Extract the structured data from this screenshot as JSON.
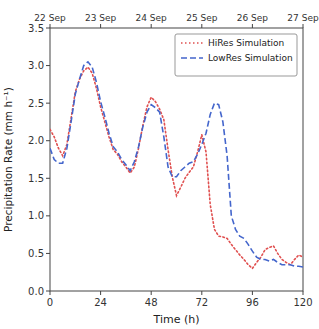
{
  "chart_data": {
    "type": "line",
    "x_label": "Time (h)",
    "y_label": "Precipitation Rate (mm h⁻¹)",
    "x": [
      0,
      2,
      4,
      6,
      8,
      10,
      12,
      14,
      16,
      18,
      20,
      22,
      24,
      26,
      28,
      30,
      32,
      34,
      36,
      38,
      40,
      42,
      44,
      46,
      48,
      50,
      52,
      54,
      56,
      58,
      60,
      62,
      64,
      66,
      68,
      70,
      72,
      74,
      76,
      78,
      80,
      82,
      84,
      86,
      88,
      90,
      92,
      94,
      96,
      98,
      100,
      102,
      104,
      106,
      108,
      110,
      112,
      114,
      116,
      118,
      120
    ],
    "series": [
      {
        "name": "HiRes Simulation",
        "color": "#e05050",
        "line_style": "dotted",
        "values": [
          2.15,
          2.05,
          1.9,
          1.8,
          1.95,
          2.3,
          2.65,
          2.82,
          2.93,
          2.98,
          2.9,
          2.7,
          2.45,
          2.25,
          2.05,
          1.88,
          1.82,
          1.72,
          1.65,
          1.57,
          1.65,
          1.9,
          2.2,
          2.45,
          2.58,
          2.52,
          2.42,
          2.28,
          1.88,
          1.52,
          1.27,
          1.38,
          1.5,
          1.58,
          1.65,
          1.85,
          2.08,
          1.85,
          1.15,
          0.82,
          0.73,
          0.72,
          0.7,
          0.62,
          0.55,
          0.48,
          0.42,
          0.35,
          0.3,
          0.38,
          0.45,
          0.55,
          0.58,
          0.6,
          0.5,
          0.42,
          0.38,
          0.35,
          0.42,
          0.48,
          0.45
        ]
      },
      {
        "name": "LowRes Simulation",
        "color": "#4466cc",
        "line_style": "dashed",
        "values": [
          1.9,
          1.75,
          1.7,
          1.7,
          1.9,
          2.25,
          2.62,
          2.82,
          3.0,
          3.05,
          2.98,
          2.78,
          2.52,
          2.32,
          2.1,
          1.92,
          1.85,
          1.75,
          1.68,
          1.6,
          1.72,
          1.92,
          2.18,
          2.38,
          2.48,
          2.44,
          2.38,
          2.05,
          1.65,
          1.52,
          1.52,
          1.6,
          1.65,
          1.7,
          1.72,
          1.82,
          1.95,
          2.1,
          2.35,
          2.5,
          2.48,
          2.25,
          1.8,
          1.0,
          0.82,
          0.73,
          0.7,
          0.62,
          0.53,
          0.45,
          0.42,
          0.42,
          0.4,
          0.42,
          0.38,
          0.35,
          0.35,
          0.35,
          0.33,
          0.33,
          0.32
        ]
      }
    ],
    "xlim": [
      0,
      120
    ],
    "ylim": [
      0.0,
      3.5
    ],
    "xticks": [
      0,
      24,
      48,
      72,
      96,
      120
    ],
    "yticks": [
      {
        "value": 0.0,
        "label": "0.0"
      },
      0.5,
      {
        "value": 1.0,
        "label": "1.0"
      },
      1.5,
      {
        "value": 2.0,
        "label": "2.0"
      },
      2.5,
      {
        "value": 3.0,
        "label": "3.0"
      },
      3.5
    ],
    "x2lim": [
      0,
      120
    ],
    "x2ticks": [
      {
        "value": 0,
        "label": "22 Sep"
      },
      {
        "value": 24,
        "label": "23 Sep"
      },
      {
        "value": 48,
        "label": "24 Sep"
      },
      {
        "value": 72,
        "label": "25 Sep"
      },
      {
        "value": 96,
        "label": "26 Sep"
      },
      {
        "value": 120,
        "label": "27 Sep"
      }
    ],
    "grid": false,
    "legend": "upper right"
  }
}
